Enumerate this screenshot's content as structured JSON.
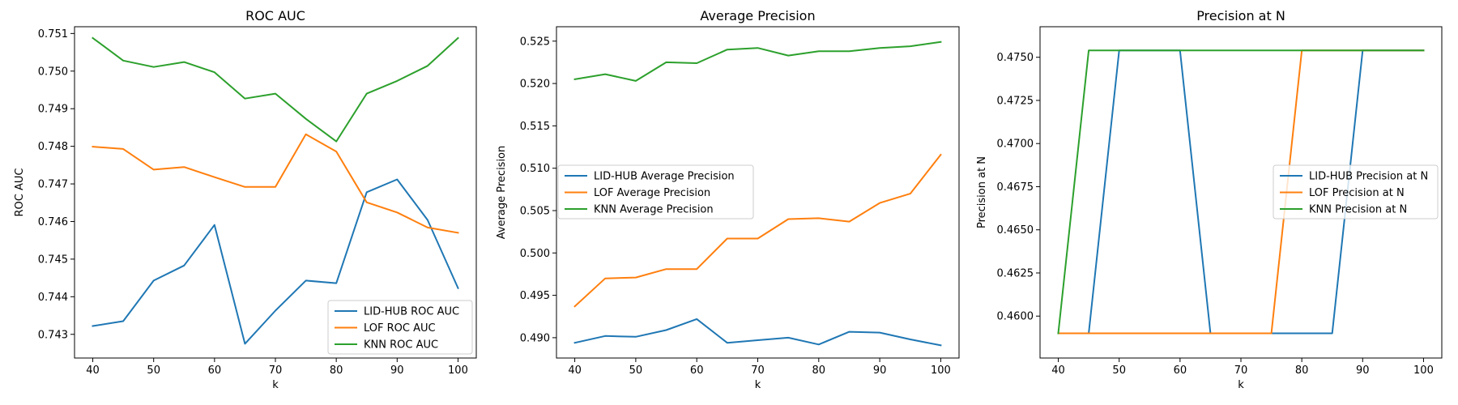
{
  "chart_data": [
    {
      "type": "line",
      "title": "ROC AUC",
      "xlabel": "k",
      "ylabel": "ROC AUC",
      "xlim": [
        37,
        103
      ],
      "ylim": [
        0.74237,
        0.75118
      ],
      "xticks": [
        40,
        50,
        60,
        70,
        80,
        90,
        100
      ],
      "xtick_labels": [
        "40",
        "50",
        "60",
        "70",
        "80",
        "90",
        "100"
      ],
      "yticks": [
        0.743,
        0.744,
        0.745,
        0.746,
        0.747,
        0.748,
        0.749,
        0.75,
        0.751
      ],
      "ytick_labels": [
        "0.743",
        "0.744",
        "0.745",
        "0.746",
        "0.747",
        "0.748",
        "0.749",
        "0.750",
        "0.751"
      ],
      "legend": "lower-right",
      "grid": false,
      "x": [
        40,
        45,
        50,
        55,
        60,
        65,
        70,
        75,
        80,
        85,
        90,
        95,
        100
      ],
      "series": [
        {
          "name": "LID-HUB ROC AUC",
          "color": "#1f77b4",
          "values": [
            0.74322,
            0.74335,
            0.74443,
            0.74483,
            0.74591,
            0.74275,
            0.74363,
            0.74443,
            0.74436,
            0.74678,
            0.74712,
            0.74604,
            0.74423
          ]
        },
        {
          "name": "LOF ROC AUC",
          "color": "#ff7f0e",
          "values": [
            0.74799,
            0.74793,
            0.74738,
            0.74745,
            0.74718,
            0.74692,
            0.74692,
            0.74832,
            0.74786,
            0.74651,
            0.74624,
            0.74584,
            0.7457
          ]
        },
        {
          "name": "KNN ROC AUC",
          "color": "#2ca02c",
          "values": [
            0.75088,
            0.75028,
            0.75011,
            0.75024,
            0.74997,
            0.74927,
            0.7494,
            0.74873,
            0.74813,
            0.7494,
            0.74974,
            0.75014,
            0.75088
          ]
        }
      ]
    },
    {
      "type": "line",
      "title": "Average Precision",
      "xlabel": "k",
      "ylabel": "Average Precision",
      "xlim": [
        37,
        103
      ],
      "ylim": [
        0.4876,
        0.5267
      ],
      "xticks": [
        40,
        50,
        60,
        70,
        80,
        90,
        100
      ],
      "xtick_labels": [
        "40",
        "50",
        "60",
        "70",
        "80",
        "90",
        "100"
      ],
      "yticks": [
        0.49,
        0.495,
        0.5,
        0.505,
        0.51,
        0.515,
        0.52,
        0.525
      ],
      "ytick_labels": [
        "0.490",
        "0.495",
        "0.500",
        "0.505",
        "0.510",
        "0.515",
        "0.520",
        "0.525"
      ],
      "legend": "center-left",
      "grid": false,
      "x": [
        40,
        45,
        50,
        55,
        60,
        65,
        70,
        75,
        80,
        85,
        90,
        95,
        100
      ],
      "series": [
        {
          "name": "LID-HUB Average Precision",
          "color": "#1f77b4",
          "values": [
            0.4894,
            0.4902,
            0.4901,
            0.4909,
            0.4922,
            0.4894,
            0.4897,
            0.49,
            0.4892,
            0.4907,
            0.4906,
            0.4898,
            0.4891
          ]
        },
        {
          "name": "LOF Average Precision",
          "color": "#ff7f0e",
          "values": [
            0.4937,
            0.497,
            0.4971,
            0.4981,
            0.4981,
            0.5017,
            0.5017,
            0.504,
            0.5041,
            0.5037,
            0.5059,
            0.507,
            0.5116
          ]
        },
        {
          "name": "KNN Average Precision",
          "color": "#2ca02c",
          "values": [
            0.5205,
            0.5211,
            0.5203,
            0.5225,
            0.5224,
            0.524,
            0.5242,
            0.5233,
            0.5238,
            0.5238,
            0.5242,
            0.5244,
            0.5249
          ]
        }
      ]
    },
    {
      "type": "line",
      "title": "Precision at N",
      "xlabel": "k",
      "ylabel": "Precision at N",
      "xlim": [
        37,
        103
      ],
      "ylim": [
        0.45757,
        0.47677
      ],
      "xticks": [
        40,
        50,
        60,
        70,
        80,
        90,
        100
      ],
      "xtick_labels": [
        "40",
        "50",
        "60",
        "70",
        "80",
        "90",
        "100"
      ],
      "yticks": [
        0.46,
        0.4625,
        0.465,
        0.4675,
        0.47,
        0.4725,
        0.475
      ],
      "ytick_labels": [
        "0.4600",
        "0.4625",
        "0.4650",
        "0.4675",
        "0.4700",
        "0.4725",
        "0.4750"
      ],
      "legend": "center-right",
      "grid": false,
      "x": [
        40,
        45,
        50,
        55,
        60,
        65,
        70,
        75,
        80,
        85,
        90,
        95,
        100
      ],
      "series": [
        {
          "name": "LID-HUB Precision at N",
          "color": "#1f77b4",
          "values": [
            0.459,
            0.459,
            0.4754,
            0.4754,
            0.4754,
            0.459,
            0.459,
            0.459,
            0.459,
            0.459,
            0.4754,
            0.4754,
            0.4754
          ]
        },
        {
          "name": "LOF Precision at N",
          "color": "#ff7f0e",
          "values": [
            0.459,
            0.459,
            0.459,
            0.459,
            0.459,
            0.459,
            0.459,
            0.459,
            0.4754,
            0.4754,
            0.4754,
            0.4754,
            0.4754
          ]
        },
        {
          "name": "KNN Precision at N",
          "color": "#2ca02c",
          "values": [
            0.459,
            0.4754,
            0.4754,
            0.4754,
            0.4754,
            0.4754,
            0.4754,
            0.4754,
            0.4754,
            0.4754,
            0.4754,
            0.4754,
            0.4754
          ]
        }
      ]
    }
  ]
}
